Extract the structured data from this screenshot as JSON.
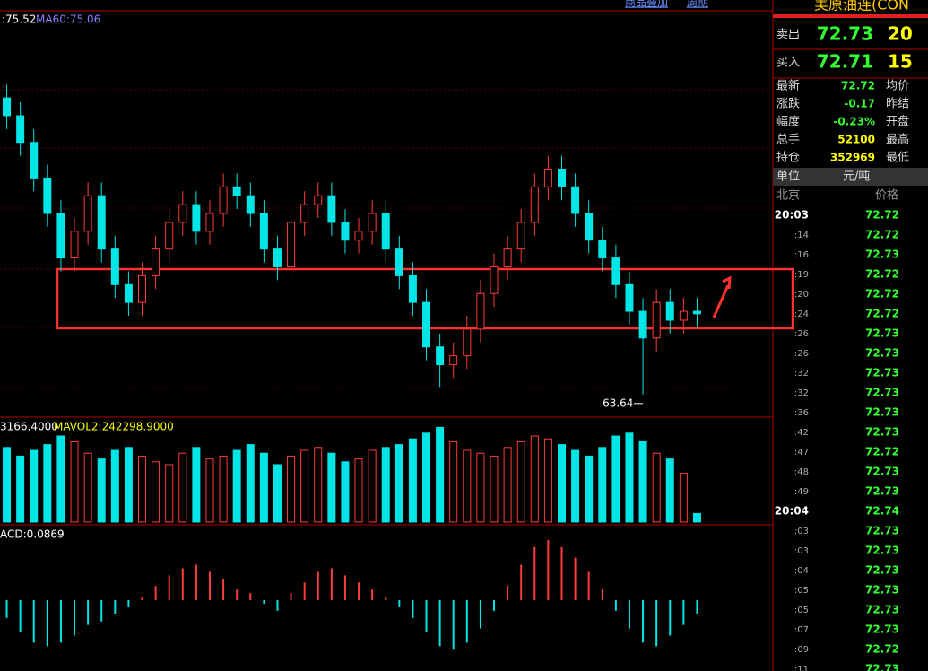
{
  "toolbar": {
    "overlay": "商品叠加",
    "period": "周期"
  },
  "chart_data": {
    "type": "candlestick",
    "ma_text_a": ":75.52",
    "ma_text_b": "MA60:75.06",
    "opens": [
      97,
      95,
      92,
      88,
      84,
      79,
      82,
      86,
      80,
      76,
      74,
      77,
      80,
      83,
      85,
      82,
      84,
      87,
      86,
      84,
      80,
      78,
      83,
      85,
      86,
      83,
      81,
      82,
      84,
      80,
      77,
      74,
      69,
      67,
      68,
      71,
      75,
      78,
      80,
      83,
      87,
      89,
      87,
      84,
      81,
      79,
      76,
      73,
      70,
      74,
      72,
      73
    ],
    "highs": [
      98.5,
      96.5,
      93.5,
      89.5,
      85.5,
      83.5,
      87.5,
      87.5,
      81.5,
      77.5,
      78.5,
      81.5,
      84.5,
      86.5,
      86.5,
      85.5,
      88.5,
      88.5,
      87.5,
      85.5,
      81.5,
      84.5,
      86.5,
      87.5,
      87.5,
      84.5,
      83.5,
      85.5,
      85.5,
      81.5,
      78.5,
      75.5,
      70.5,
      69.5,
      72.5,
      76.5,
      79.5,
      81.5,
      84.5,
      88.5,
      90.5,
      90.5,
      88.5,
      85.5,
      82.5,
      80.5,
      77.5,
      74.5,
      75.5,
      75.5,
      74.5,
      74.5
    ],
    "lows": [
      93.5,
      90.5,
      86.5,
      82.5,
      77.5,
      77.5,
      80.5,
      78.5,
      74.5,
      72.5,
      72.5,
      75.5,
      78.5,
      81.5,
      80.5,
      80.5,
      82.5,
      84.5,
      82.5,
      78.5,
      76.5,
      76.5,
      81.5,
      83.5,
      81.5,
      79.5,
      79.5,
      80.5,
      78.5,
      75.5,
      72.5,
      67.5,
      64.5,
      65.5,
      66.5,
      69.5,
      73.5,
      76.5,
      78.5,
      81.5,
      85.5,
      85.5,
      82.5,
      79.5,
      77.5,
      74.5,
      71.5,
      63.64,
      68.5,
      70.5,
      70.5,
      71.22
    ],
    "closes": [
      95,
      92,
      88,
      84,
      79,
      82,
      86,
      80,
      76,
      74,
      77,
      80,
      83,
      85,
      82,
      84,
      87,
      86,
      84,
      80,
      78,
      83,
      85,
      86,
      83,
      81,
      82,
      84,
      80,
      77,
      74,
      69,
      67,
      68,
      71,
      75,
      78,
      80,
      83,
      87,
      89,
      87,
      84,
      81,
      79,
      76,
      73,
      70,
      74,
      72,
      73,
      72.72
    ],
    "ylim": [
      61.1,
      106.5
    ],
    "up_color": "#ff3c3c",
    "down_color": "#00e5e5",
    "low_label_index": 47,
    "volume": {
      "text_a": "3166.4000",
      "text_b": "MAVOL2:242298.9000",
      "ylim": [
        0,
        350000
      ],
      "values": [
        260000,
        230000,
        250000,
        270000,
        300000,
        280000,
        240000,
        220000,
        250000,
        260000,
        230000,
        210000,
        200000,
        240000,
        260000,
        220000,
        230000,
        250000,
        270000,
        240000,
        200000,
        230000,
        250000,
        260000,
        240000,
        210000,
        220000,
        250000,
        260000,
        270000,
        290000,
        310000,
        330000,
        280000,
        250000,
        240000,
        230000,
        260000,
        280000,
        300000,
        290000,
        270000,
        250000,
        230000,
        260000,
        300000,
        310000,
        280000,
        240000,
        220000,
        170000,
        30000
      ]
    },
    "macd": {
      "text": "ACD:0.0869",
      "ylim": [
        -2,
        2
      ],
      "values": [
        -0.5,
        -0.9,
        -1.2,
        -1.3,
        -1.2,
        -1.0,
        -0.7,
        -0.6,
        -0.4,
        -0.2,
        0.1,
        0.4,
        0.7,
        0.9,
        1.0,
        0.8,
        0.6,
        0.3,
        0.2,
        -0.1,
        -0.3,
        0.2,
        0.5,
        0.8,
        0.9,
        0.7,
        0.5,
        0.3,
        0.1,
        -0.2,
        -0.5,
        -0.9,
        -1.3,
        -1.4,
        -1.2,
        -0.8,
        -0.3,
        0.4,
        1.0,
        1.5,
        1.7,
        1.5,
        1.2,
        0.8,
        0.3,
        -0.3,
        -0.8,
        -1.2,
        -1.3,
        -1.0,
        -0.7,
        -0.4
      ]
    }
  },
  "panel": {
    "title": "美原油连(CON",
    "sell_label": "卖出",
    "sell_price": 72.73,
    "sell_qty": 20,
    "buy_label": "买入",
    "buy_price": 72.71,
    "buy_qty": 15,
    "stats": [
      {
        "label": "最新",
        "value": 72.72,
        "label2": "均价"
      },
      {
        "label": "涨跌",
        "value": -0.17,
        "label2": "昨结"
      },
      {
        "label": "幅度",
        "value": "-0.23%",
        "label2": "开盘"
      },
      {
        "label": "总手",
        "value": 52100,
        "label2": "最高"
      },
      {
        "label": "持仓",
        "value": 352969,
        "label2": "最低"
      }
    ],
    "unit_label": "单位",
    "unit": "元/吨",
    "time_header": "北京",
    "price_header": "价格",
    "ticks": [
      {
        "time": "20:03",
        "price": 72.72
      },
      {
        "time": ":14",
        "price": 72.72
      },
      {
        "time": ":16",
        "price": 72.73
      },
      {
        "time": ":19",
        "price": 72.72
      },
      {
        "time": ":20",
        "price": 72.72
      },
      {
        "time": ":24",
        "price": 72.72
      },
      {
        "time": ":26",
        "price": 72.73
      },
      {
        "time": ":26",
        "price": 72.73
      },
      {
        "time": ":32",
        "price": 72.73
      },
      {
        "time": ":32",
        "price": 72.73
      },
      {
        "time": ":36",
        "price": 72.73
      },
      {
        "time": ":42",
        "price": 72.73
      },
      {
        "time": ":47",
        "price": 72.72
      },
      {
        "time": ":48",
        "price": 72.73
      },
      {
        "time": ":49",
        "price": 72.73
      },
      {
        "time": "20:04",
        "price": 72.74
      },
      {
        "time": ":03",
        "price": 72.73
      },
      {
        "time": ":03",
        "price": 72.73
      },
      {
        "time": ":04",
        "price": 72.73
      },
      {
        "time": ":05",
        "price": 72.73
      },
      {
        "time": ":05",
        "price": 72.73
      },
      {
        "time": ":07",
        "price": 72.73
      },
      {
        "time": ":09",
        "price": 72.72
      },
      {
        "time": ":11",
        "price": 72.73
      }
    ]
  }
}
